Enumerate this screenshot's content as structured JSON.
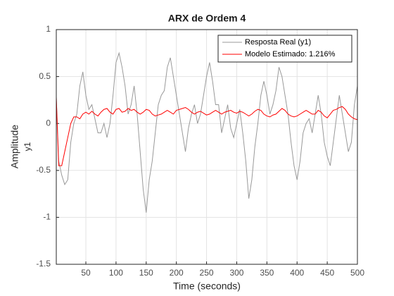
{
  "chart_data": {
    "type": "line",
    "title": "ARX de Ordem 4",
    "xlabel": "Time (seconds)",
    "ylabel": [
      "Amplitude",
      "y1"
    ],
    "x": [
      1,
      5,
      10,
      15,
      20,
      25,
      30,
      35,
      40,
      45,
      50,
      55,
      60,
      65,
      70,
      75,
      80,
      85,
      90,
      95,
      100,
      105,
      110,
      115,
      120,
      125,
      130,
      135,
      140,
      145,
      150,
      155,
      160,
      165,
      170,
      175,
      180,
      185,
      190,
      195,
      200,
      205,
      210,
      215,
      220,
      225,
      230,
      235,
      240,
      245,
      250,
      255,
      260,
      265,
      270,
      275,
      280,
      285,
      290,
      295,
      300,
      305,
      310,
      315,
      320,
      325,
      330,
      335,
      340,
      345,
      350,
      355,
      360,
      365,
      370,
      375,
      380,
      385,
      390,
      395,
      400,
      405,
      410,
      415,
      420,
      425,
      430,
      435,
      440,
      445,
      450,
      455,
      460,
      465,
      470,
      475,
      480,
      485,
      490,
      495,
      500
    ],
    "series": [
      {
        "name": "Resposta Real (y1)",
        "color": "#999999",
        "values": [
          0.28,
          -0.4,
          -0.55,
          -0.65,
          -0.6,
          -0.2,
          0.0,
          0.1,
          0.4,
          0.55,
          0.3,
          0.15,
          0.2,
          0.05,
          -0.1,
          -0.1,
          0.0,
          -0.15,
          0.0,
          0.3,
          0.65,
          0.75,
          0.6,
          0.4,
          0.1,
          0.2,
          0.4,
          0.1,
          -0.3,
          -0.7,
          -0.95,
          -0.6,
          -0.4,
          -0.1,
          0.2,
          0.3,
          0.35,
          0.6,
          0.7,
          0.5,
          0.3,
          0.1,
          -0.1,
          -0.3,
          -0.05,
          0.1,
          0.2,
          0.0,
          0.1,
          0.3,
          0.5,
          0.65,
          0.45,
          0.2,
          0.2,
          -0.1,
          0.05,
          0.2,
          -0.05,
          -0.15,
          0.0,
          0.15,
          -0.1,
          -0.4,
          -0.8,
          -0.6,
          -0.25,
          0.0,
          0.3,
          0.45,
          0.3,
          0.1,
          0.2,
          0.35,
          0.6,
          0.5,
          0.3,
          0.1,
          -0.2,
          -0.45,
          -0.6,
          -0.4,
          -0.1,
          0.0,
          0.05,
          -0.1,
          0.1,
          0.3,
          0.1,
          -0.2,
          -0.35,
          -0.45,
          -0.2,
          0.05,
          0.3,
          0.1,
          -0.1,
          -0.3,
          -0.2,
          0.2,
          0.4
        ]
      },
      {
        "name": "Modelo Estimado: 1.216%",
        "color": "#ff0000",
        "values": [
          0.28,
          -0.45,
          -0.45,
          -0.3,
          -0.15,
          0.0,
          0.07,
          0.07,
          0.05,
          0.1,
          0.12,
          0.1,
          0.13,
          0.1,
          0.08,
          0.12,
          0.15,
          0.16,
          0.12,
          0.1,
          0.15,
          0.16,
          0.12,
          0.13,
          0.16,
          0.14,
          0.15,
          0.12,
          0.1,
          0.12,
          0.15,
          0.14,
          0.1,
          0.08,
          0.09,
          0.1,
          0.12,
          0.14,
          0.12,
          0.1,
          0.14,
          0.15,
          0.16,
          0.17,
          0.15,
          0.12,
          0.1,
          0.12,
          0.13,
          0.11,
          0.09,
          0.1,
          0.12,
          0.14,
          0.12,
          0.1,
          0.12,
          0.13,
          0.14,
          0.12,
          0.11,
          0.13,
          0.12,
          0.1,
          0.08,
          0.1,
          0.13,
          0.15,
          0.14,
          0.1,
          0.08,
          0.07,
          0.09,
          0.1,
          0.13,
          0.16,
          0.14,
          0.1,
          0.08,
          0.07,
          0.08,
          0.1,
          0.12,
          0.14,
          0.12,
          0.1,
          0.1,
          0.14,
          0.12,
          0.08,
          0.06,
          0.1,
          0.14,
          0.15,
          0.17,
          0.18,
          0.15,
          0.1,
          0.07,
          0.05,
          0.04
        ]
      }
    ],
    "xlim": [
      1,
      500
    ],
    "xticks": [
      50,
      100,
      150,
      200,
      250,
      300,
      350,
      400,
      450,
      500
    ],
    "ylim": [
      -1.5,
      1
    ],
    "yticks": [
      -1.5,
      -1,
      -0.5,
      0,
      0.5,
      1
    ],
    "grid": true,
    "legend": "northeast"
  }
}
